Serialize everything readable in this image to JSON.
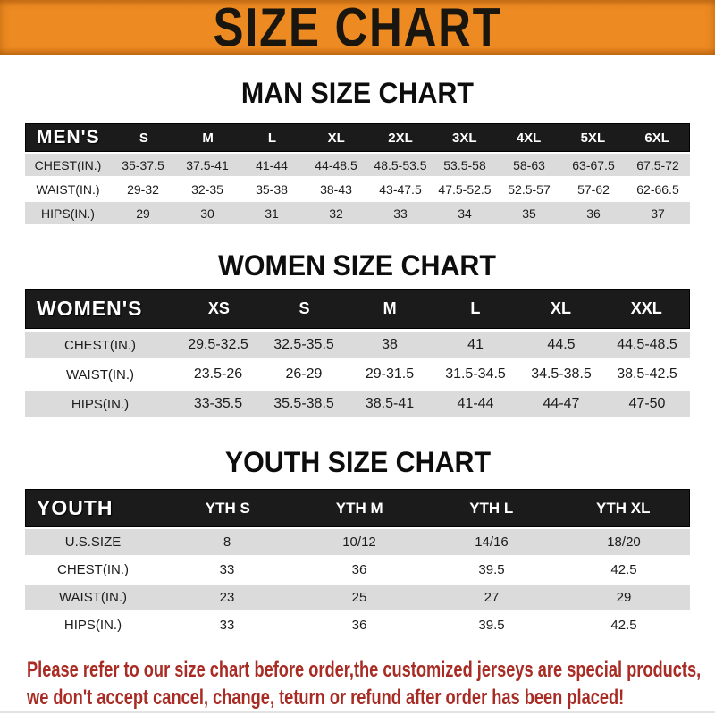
{
  "banner": {
    "title": "SIZE CHART"
  },
  "chart_data": [
    {
      "type": "table",
      "title": "MAN SIZE CHART",
      "header_label": "MEN'S",
      "columns": [
        "S",
        "M",
        "L",
        "XL",
        "2XL",
        "3XL",
        "4XL",
        "5XL",
        "6XL"
      ],
      "rows": [
        {
          "label": "CHEST(IN.)",
          "values": [
            "35-37.5",
            "37.5-41",
            "41-44",
            "44-48.5",
            "48.5-53.5",
            "53.5-58",
            "58-63",
            "63-67.5",
            "67.5-72"
          ]
        },
        {
          "label": "WAIST(IN.)",
          "values": [
            "29-32",
            "32-35",
            "35-38",
            "38-43",
            "43-47.5",
            "47.5-52.5",
            "52.5-57",
            "57-62",
            "62-66.5"
          ]
        },
        {
          "label": "HIPS(IN.)",
          "values": [
            "29",
            "30",
            "31",
            "32",
            "33",
            "34",
            "35",
            "36",
            "37"
          ]
        }
      ]
    },
    {
      "type": "table",
      "title": "WOMEN SIZE CHART",
      "header_label": "WOMEN'S",
      "columns": [
        "XS",
        "S",
        "M",
        "L",
        "XL",
        "XXL"
      ],
      "rows": [
        {
          "label": "CHEST(IN.)",
          "values": [
            "29.5-32.5",
            "32.5-35.5",
            "38",
            "41",
            "44.5",
            "44.5-48.5"
          ]
        },
        {
          "label": "WAIST(IN.)",
          "values": [
            "23.5-26",
            "26-29",
            "29-31.5",
            "31.5-34.5",
            "34.5-38.5",
            "38.5-42.5"
          ]
        },
        {
          "label": "HIPS(IN.)",
          "values": [
            "33-35.5",
            "35.5-38.5",
            "38.5-41",
            "41-44",
            "44-47",
            "47-50"
          ]
        }
      ]
    },
    {
      "type": "table",
      "title": "YOUTH SIZE CHART",
      "header_label": "YOUTH",
      "columns": [
        "YTH S",
        "YTH M",
        "YTH L",
        "YTH XL"
      ],
      "rows": [
        {
          "label": "U.S.SIZE",
          "values": [
            "8",
            "10/12",
            "14/16",
            "18/20"
          ]
        },
        {
          "label": "CHEST(IN.)",
          "values": [
            "33",
            "36",
            "39.5",
            "42.5"
          ]
        },
        {
          "label": "WAIST(IN.)",
          "values": [
            "23",
            "25",
            "27",
            "29"
          ]
        },
        {
          "label": "HIPS(IN.)",
          "values": [
            "33",
            "36",
            "39.5",
            "42.5"
          ]
        }
      ]
    }
  ],
  "footer": {
    "line1": "Please refer to our size chart before order,the customized jerseys are special products,",
    "line2": "we don't accept cancel, change, teturn or refund after order has been placed!"
  },
  "colors": {
    "banner_orange": "#ED8A21",
    "header_bar_black": "#1b1b1b",
    "row_gray": "#dbdbdb",
    "footer_red": "#A82B24"
  }
}
